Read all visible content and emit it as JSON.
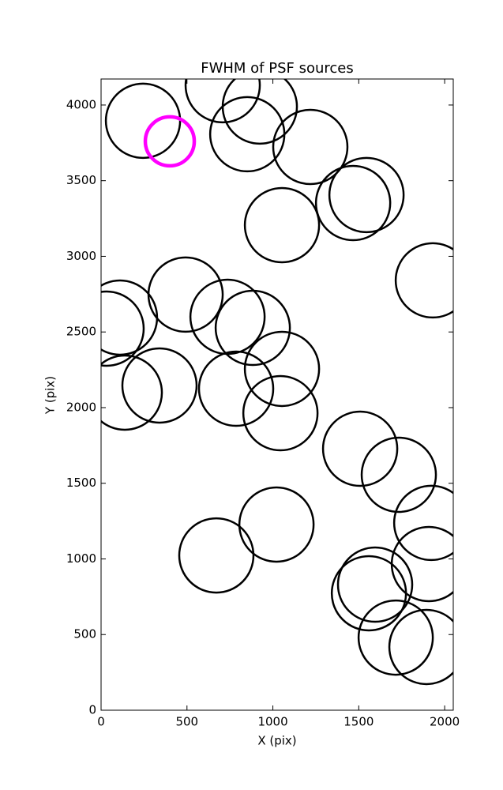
{
  "chart_data": {
    "type": "scatter",
    "title": "FWHM of PSF sources",
    "x_label": "X (pix)",
    "y_label": "Y (pix)",
    "xlim": [
      0,
      2050
    ],
    "ylim": [
      0,
      4172
    ],
    "xticks": [
      0,
      500,
      1000,
      1500,
      2000
    ],
    "yticks": [
      0,
      500,
      1000,
      1500,
      2000,
      2500,
      3000,
      3500,
      4000
    ],
    "series": [
      {
        "color": "#000000",
        "x": [
          244,
          708,
          924,
          851,
          1218,
          1545,
          1467,
          1053,
          1931,
          110,
          32,
          138,
          340,
          492,
          736,
          883,
          1053,
          786,
          1044,
          1508,
          1733,
          1922,
          1908,
          1595,
          1559,
          1715,
          1894,
          1021,
          671
        ],
        "values": [
          3896,
          4131,
          3990,
          3807,
          3723,
          3405,
          3352,
          3206,
          2841,
          2595,
          2522,
          2099,
          2146,
          2747,
          2600,
          2527,
          2256,
          2125,
          1963,
          1728,
          1556,
          1238,
          966,
          830,
          773,
          480,
          418,
          1227,
          1023
        ]
      },
      {
        "color": "#ff00ff",
        "x": [
          400
        ],
        "values": [
          3760
        ]
      }
    ]
  }
}
